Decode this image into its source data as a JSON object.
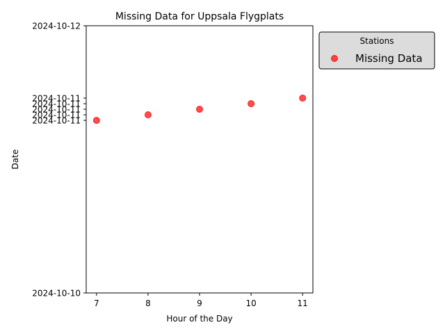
{
  "chart_data": {
    "type": "scatter",
    "title": "Missing Data for Uppsala Flygplats",
    "xlabel": "Hour of the Day",
    "ylabel": "Date",
    "xlim": [
      6.8,
      11.2
    ],
    "ylim": [
      "2024-10-10",
      "2024-10-12"
    ],
    "x_ticks": [
      7,
      8,
      9,
      10,
      11
    ],
    "y_ticks": [
      {
        "value": "2024-10-10T00:00",
        "label": "2024-10-10"
      },
      {
        "value": "2024-10-11T07:00",
        "label": "2024-10-11"
      },
      {
        "value": "2024-10-11T08:00",
        "label": "2024-10-11"
      },
      {
        "value": "2024-10-11T09:00",
        "label": "2024-10-11"
      },
      {
        "value": "2024-10-11T10:00",
        "label": "2024-10-11"
      },
      {
        "value": "2024-10-11T11:00",
        "label": "2024-10-11"
      },
      {
        "value": "2024-10-12T00:00",
        "label": "2024-10-12"
      }
    ],
    "series": [
      {
        "name": "Missing Data",
        "color": "#ff0000",
        "points": [
          {
            "x": 7,
            "y": "2024-10-11T07:00"
          },
          {
            "x": 8,
            "y": "2024-10-11T08:00"
          },
          {
            "x": 9,
            "y": "2024-10-11T09:00"
          },
          {
            "x": 10,
            "y": "2024-10-11T10:00"
          },
          {
            "x": 11,
            "y": "2024-10-11T11:00"
          }
        ]
      }
    ],
    "legend": {
      "title": "Stations",
      "position": "outside-top-right"
    },
    "grid": false
  }
}
